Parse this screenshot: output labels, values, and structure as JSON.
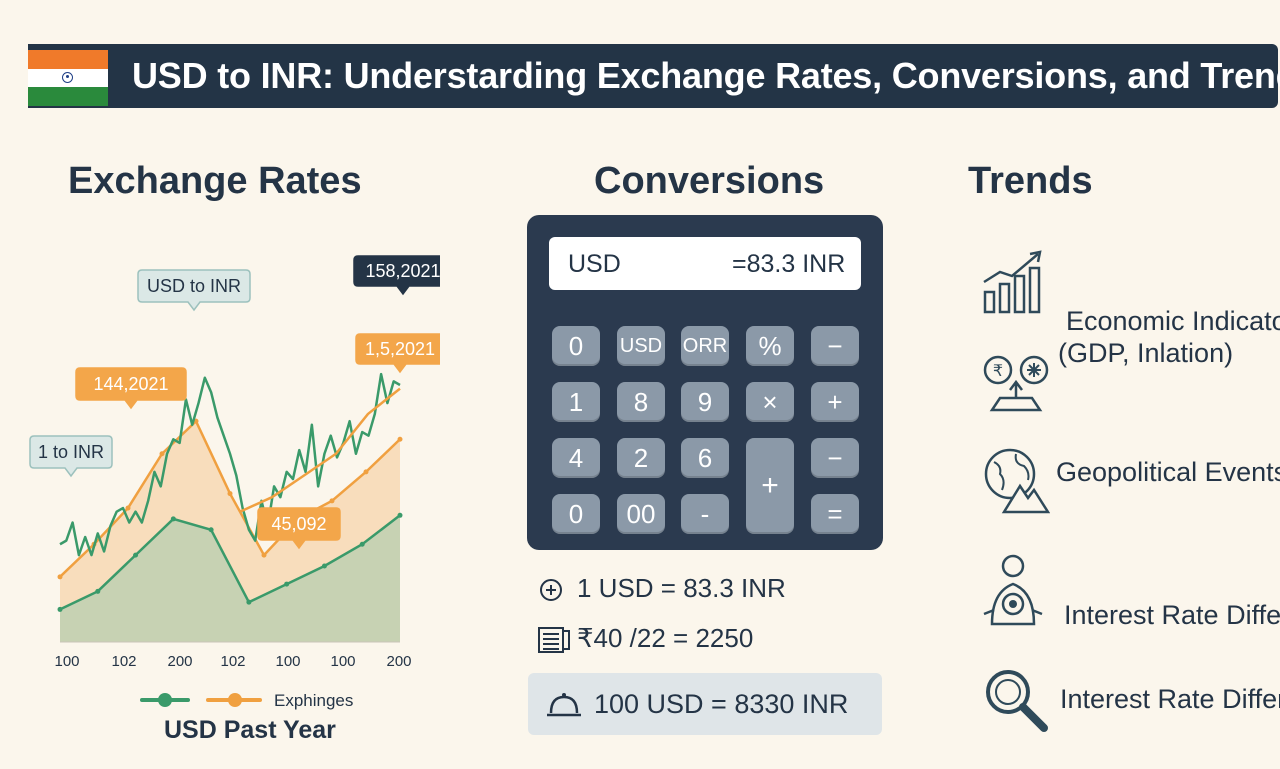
{
  "header": {
    "title": "USD to INR: Understarding Exchange Rates, Conversions, and Trends",
    "flag_colors": {
      "saffron": "#f07a2a",
      "white": "#ffffff",
      "green": "#2a8a3c",
      "chakra": "#1f3f86"
    }
  },
  "sections": {
    "exchange_rates": {
      "heading": "Exchange Rates"
    },
    "conversions": {
      "heading": "Conversions"
    },
    "trends": {
      "heading": "Trends"
    }
  },
  "chart_data": {
    "type": "area",
    "title": "",
    "caption": "USD Past Year",
    "x_ticks": [
      "100",
      "102",
      "200",
      "102",
      "100",
      "100",
      "200"
    ],
    "series": [
      {
        "color": "#3a9a6a",
        "style": "line",
        "values": [
          0.27,
          0.28,
          0.33,
          0.24,
          0.29,
          0.24,
          0.3,
          0.25,
          0.32,
          0.36,
          0.37,
          0.33,
          0.36,
          0.33,
          0.39,
          0.47,
          0.43,
          0.52,
          0.56,
          0.55,
          0.67,
          0.6,
          0.66,
          0.73,
          0.69,
          0.62,
          0.57,
          0.52,
          0.46,
          0.37,
          0.31,
          0.28,
          0.39,
          0.32,
          0.43,
          0.4,
          0.47,
          0.45,
          0.53,
          0.47,
          0.6,
          0.43,
          0.52,
          0.57,
          0.51,
          0.55,
          0.61,
          0.52,
          0.58,
          0.57,
          0.63,
          0.74,
          0.66,
          0.72,
          0.71
        ]
      },
      {
        "color": "#f0a040",
        "style": "area",
        "values": [
          0.18,
          0.27,
          0.37,
          0.52,
          0.61,
          0.41,
          0.24,
          0.34,
          0.39,
          0.47,
          0.56
        ]
      },
      {
        "color": "#3a9a6a",
        "style": "area",
        "values": [
          0.09,
          0.14,
          0.24,
          0.34,
          0.31,
          0.11,
          0.16,
          0.21,
          0.27,
          0.35
        ]
      },
      {
        "color": "#f0a040",
        "style": "line",
        "values": [
          0.36,
          0.4,
          0.46,
          0.52,
          0.63,
          0.7
        ]
      }
    ],
    "callouts": [
      {
        "text": "USD to INR",
        "style": "teal"
      },
      {
        "text": "158,2021",
        "style": "dark"
      },
      {
        "text": "1,5,2021",
        "style": "orange"
      },
      {
        "text": "144,2021",
        "style": "orange"
      },
      {
        "text": "1 to INR",
        "style": "teal"
      },
      {
        "text": "45,092",
        "style": "orange"
      }
    ],
    "legend": {
      "label": "Exphinges",
      "colors": [
        "#3a9a6a",
        "#f0a040"
      ]
    }
  },
  "calculator": {
    "display_left": "USD",
    "display_right": "=83.3 INR",
    "keys": [
      "0",
      "USD",
      "ORR",
      "%",
      "−",
      "1",
      "8",
      "9",
      "×",
      "+",
      "4",
      "2",
      "6",
      "+",
      "−",
      "0",
      "00",
      "-",
      "="
    ]
  },
  "conversions": {
    "line1": "1 USD = 83.3 INR",
    "line2": "₹40 /22 = 2250",
    "result": "100 USD = 8330 INR"
  },
  "trends": {
    "items": [
      {
        "label": "Economic Indicato",
        "icon": "bar-chart-growth-icon"
      },
      {
        "label": "(GDP, Inlation)",
        "icon": ""
      },
      {
        "label": "Geopolitical Events",
        "icon": "globe-mountain-icon"
      },
      {
        "label": "Interest Rate Differ",
        "icon": "person-network-icon"
      },
      {
        "label": "Interest Rate Differ",
        "icon": "magnifier-icon"
      }
    ]
  }
}
